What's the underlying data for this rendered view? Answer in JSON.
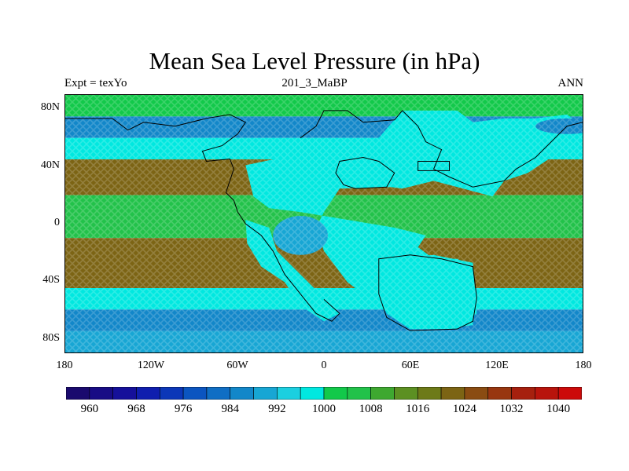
{
  "header": {
    "title": "Mean Sea Level Pressure (in hPa)",
    "left": "Expt = texYo",
    "center": "201_3_MaBP",
    "right": "ANN"
  },
  "axes": {
    "y_ticks": [
      "80N",
      "40N",
      "0",
      "40S",
      "80S"
    ],
    "x_ticks": [
      "180",
      "120W",
      "60W",
      "0",
      "60E",
      "120E",
      "180"
    ]
  },
  "colorbar": {
    "labels": [
      "960",
      "968",
      "976",
      "984",
      "992",
      "1000",
      "1008",
      "1016",
      "1024",
      "1032",
      "1040"
    ],
    "colors": [
      "#1a0a6e",
      "#180c85",
      "#15109a",
      "#0f1eae",
      "#0b37b8",
      "#0b55c0",
      "#0f6ec4",
      "#1287c9",
      "#17a6d4",
      "#1bcfe0",
      "#00e8e0",
      "#12c94a",
      "#22c24a",
      "#3ea830",
      "#5c9022",
      "#6d7a18",
      "#7c6414",
      "#8a4c12",
      "#983610",
      "#a6200e",
      "#b8140c",
      "#cc0a0a"
    ],
    "range": [
      956,
      1044
    ]
  },
  "map_data": {
    "type": "contour-fill",
    "variable": "MSLP",
    "units": "hPa",
    "lon_range": [
      -180,
      180
    ],
    "lat_range": [
      -90,
      90
    ],
    "zonal_bands": [
      {
        "lat": [
          75,
          90
        ],
        "value": 1002
      },
      {
        "lat": [
          60,
          75
        ],
        "value": 984
      },
      {
        "lat": [
          45,
          60
        ],
        "value": 998
      },
      {
        "lat": [
          20,
          45
        ],
        "value": 1020
      },
      {
        "lat": [
          -10,
          20
        ],
        "value": 1006
      },
      {
        "lat": [
          -45,
          -10
        ],
        "value": 1022
      },
      {
        "lat": [
          -60,
          -45
        ],
        "value": 998
      },
      {
        "lat": [
          -75,
          -60
        ],
        "value": 986
      },
      {
        "lat": [
          -90,
          -75
        ],
        "value": 990
      }
    ],
    "land_mass_value": 1000
  }
}
